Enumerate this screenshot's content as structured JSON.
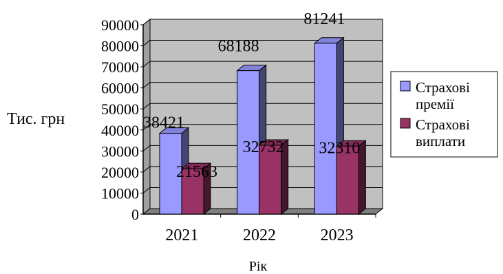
{
  "chart_data": {
    "type": "bar",
    "title": "",
    "categories": [
      "2021",
      "2022",
      "2023"
    ],
    "series": [
      {
        "name": "Страхові премії",
        "values": [
          38421,
          68188,
          81241
        ],
        "color": "#9999ff"
      },
      {
        "name": "Страхові виплати",
        "values": [
          21563,
          32732,
          32310
        ],
        "color": "#993366"
      }
    ],
    "xlabel": "Рік",
    "ylabel": "Тис. грн",
    "ylim": [
      0,
      90000
    ],
    "ytick_step": 10000,
    "grid": true,
    "legend": "right",
    "plot_background": "#c0c0c0",
    "style": "3d-clustered-column"
  }
}
